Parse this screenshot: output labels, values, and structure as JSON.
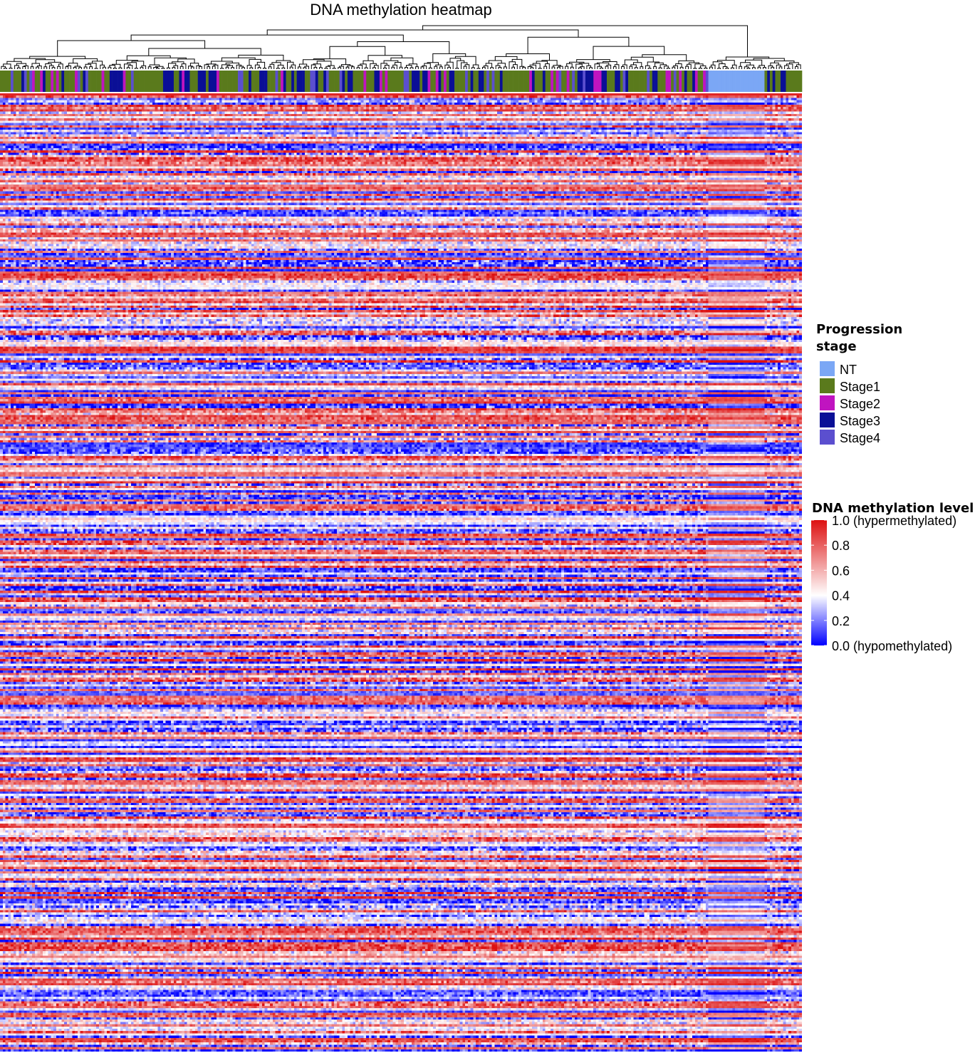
{
  "chart_data": {
    "type": "heatmap",
    "title": "DNA methylation heatmap",
    "annotation_legend": {
      "title_lines": [
        "Progression",
        "stage"
      ],
      "entries": [
        {
          "label": "NT",
          "color": "#7ba7f5"
        },
        {
          "label": "Stage1",
          "color": "#5a7a1c"
        },
        {
          "label": "Stage2",
          "color": "#c014c0"
        },
        {
          "label": "Stage3",
          "color": "#0a0f96"
        },
        {
          "label": "Stage4",
          "color": "#5b4fcf"
        }
      ]
    },
    "color_legend": {
      "title": "DNA methylation level",
      "range": [
        0,
        1
      ],
      "colors": {
        "low": "#0000ff",
        "mid": "#ffffff",
        "high": "#dd1111"
      },
      "ticks": [
        {
          "value": 1.0,
          "label": "1.0 (hypermethylated)"
        },
        {
          "value": 0.8,
          "label": "0.8"
        },
        {
          "value": 0.6,
          "label": "0.6"
        },
        {
          "value": 0.4,
          "label": "0.4"
        },
        {
          "value": 0.2,
          "label": "0.2"
        },
        {
          "value": 0.0,
          "label": "0.0 (hypomethylated)"
        }
      ]
    },
    "column_groups": [
      {
        "stage": "mixed tumor (Stage1–Stage4)",
        "fraction": 0.882
      },
      {
        "stage": "NT",
        "fraction": 0.072
      },
      {
        "stage": "mixed tumor (Stage1–Stage4)",
        "fraction": 0.046
      }
    ],
    "legend_placement": "right",
    "dendrogram": "top (columns)"
  }
}
